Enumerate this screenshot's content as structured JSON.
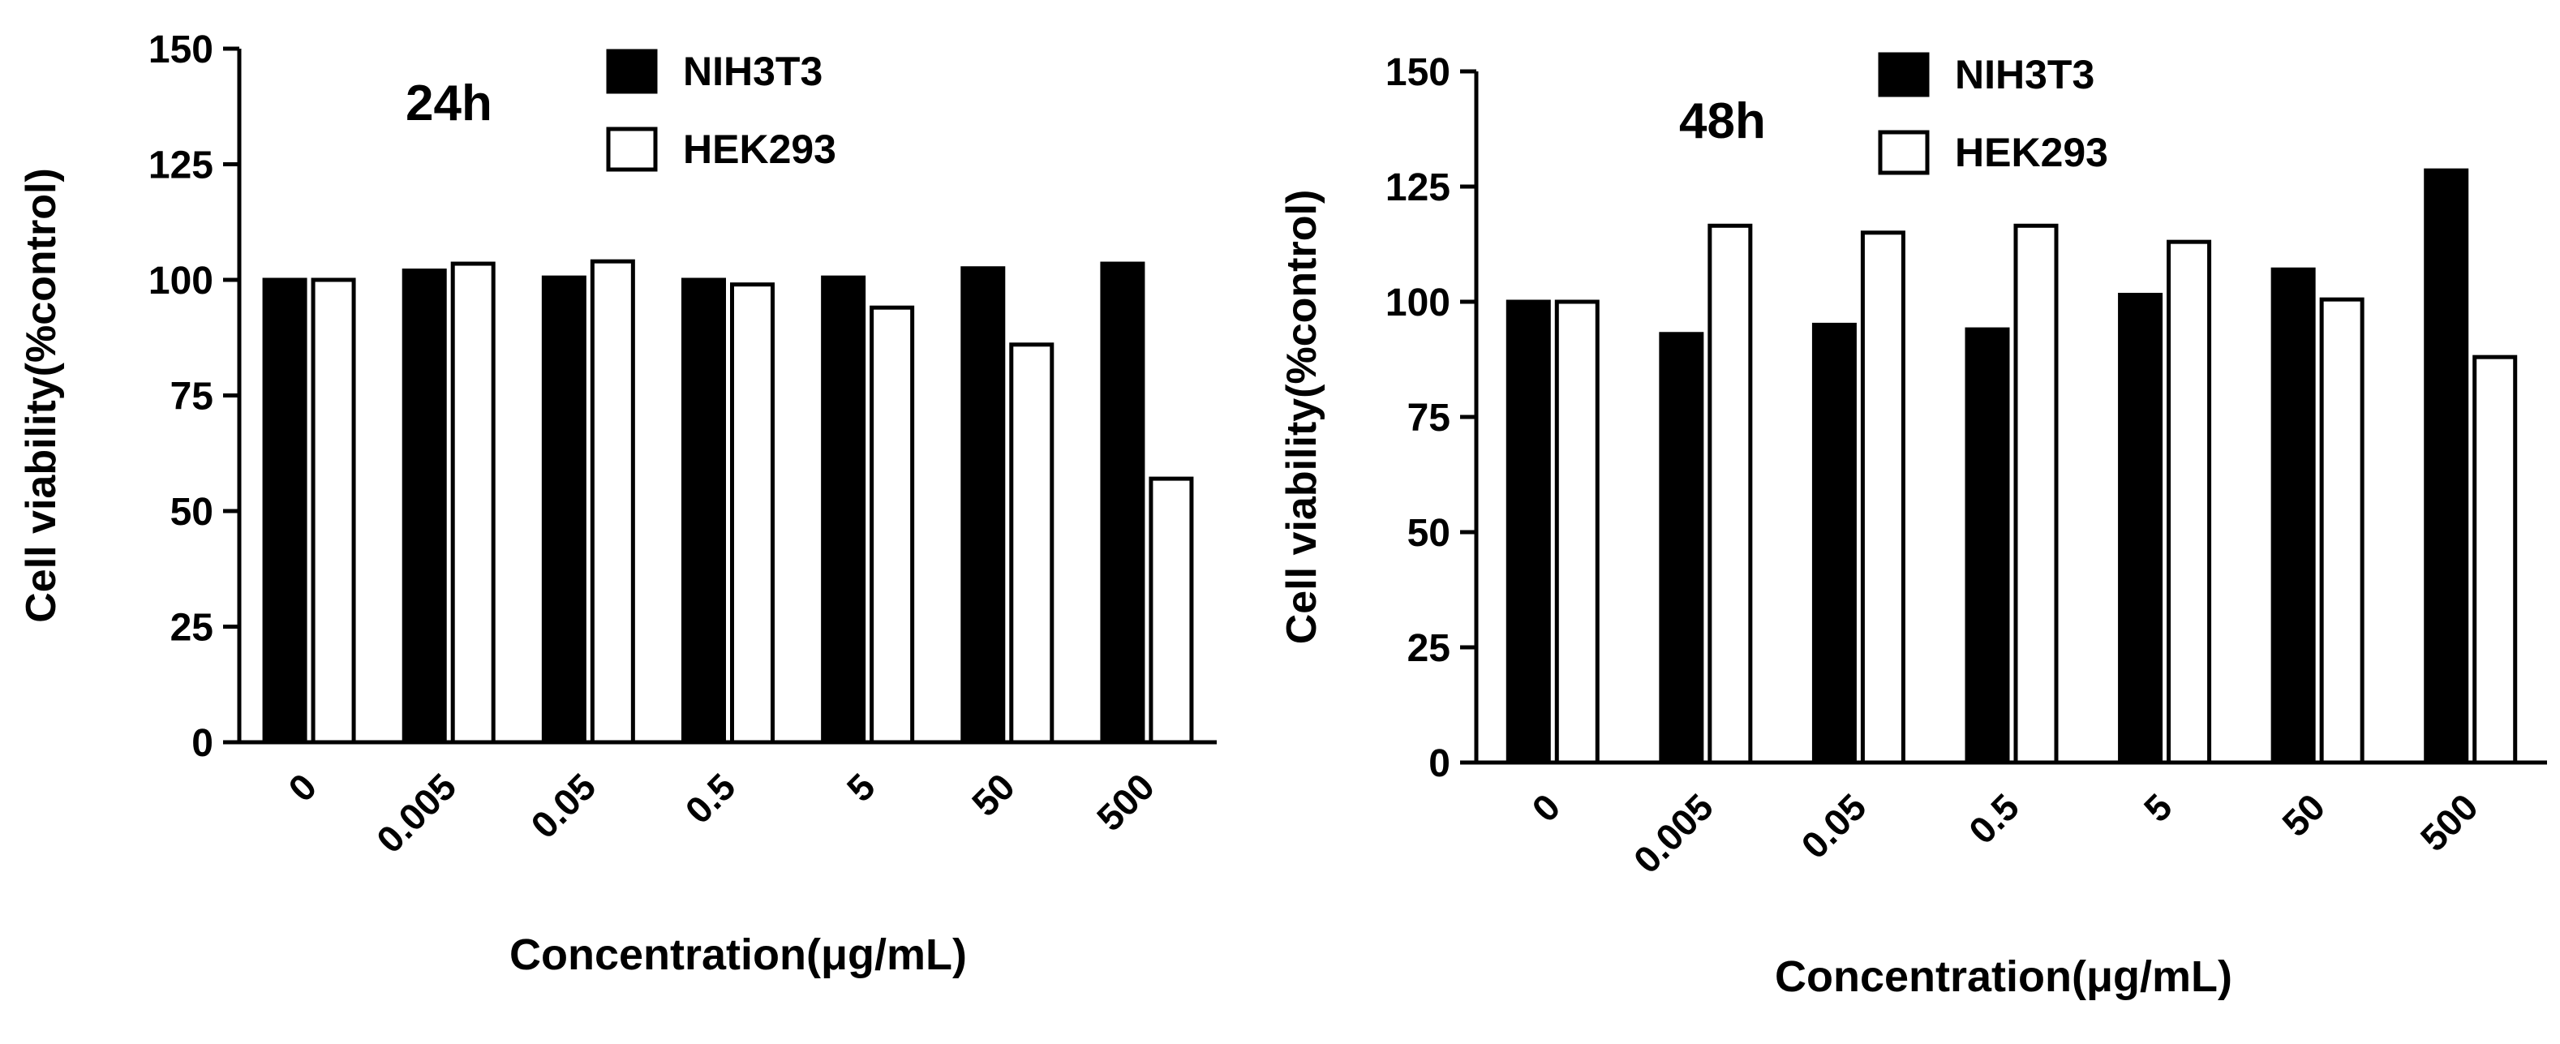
{
  "chart_data": [
    {
      "type": "bar",
      "annotation": "24h",
      "xlabel": "Concentration(μg/mL)",
      "ylabel": "Cell viability(%control)",
      "ylim": [
        0,
        150
      ],
      "yticks": [
        "0",
        "25",
        "50",
        "75",
        "100",
        "125",
        "150"
      ],
      "categories": [
        "0",
        "0.005",
        "0.05",
        "0.5",
        "5",
        "50",
        "500"
      ],
      "series": [
        {
          "name": "NIH3T3",
          "color": "#000000",
          "fill": "solid",
          "values": [
            100,
            102,
            100.5,
            100,
            100.5,
            102.5,
            103.5
          ]
        },
        {
          "name": "HEK293",
          "color": "#ffffff",
          "fill": "open",
          "values": [
            100,
            103.5,
            104,
            99,
            94,
            86,
            57
          ]
        }
      ],
      "legend_position": "top-center",
      "grid": false
    },
    {
      "type": "bar",
      "annotation": "48h",
      "xlabel": "Concentration(μg/mL)",
      "ylabel": "Cell viability(%control)",
      "ylim": [
        0,
        150
      ],
      "yticks": [
        "0",
        "25",
        "50",
        "75",
        "100",
        "125",
        "150"
      ],
      "categories": [
        "0",
        "0.005",
        "0.05",
        "0.5",
        "5",
        "50",
        "500"
      ],
      "series": [
        {
          "name": "NIH3T3",
          "color": "#000000",
          "fill": "solid",
          "values": [
            100,
            93,
            95,
            94,
            101.5,
            107,
            128.5
          ]
        },
        {
          "name": "HEK293",
          "color": "#ffffff",
          "fill": "open",
          "values": [
            100,
            116.5,
            115,
            116.5,
            113,
            100.5,
            88
          ]
        }
      ],
      "legend_position": "top-center",
      "grid": false
    }
  ]
}
